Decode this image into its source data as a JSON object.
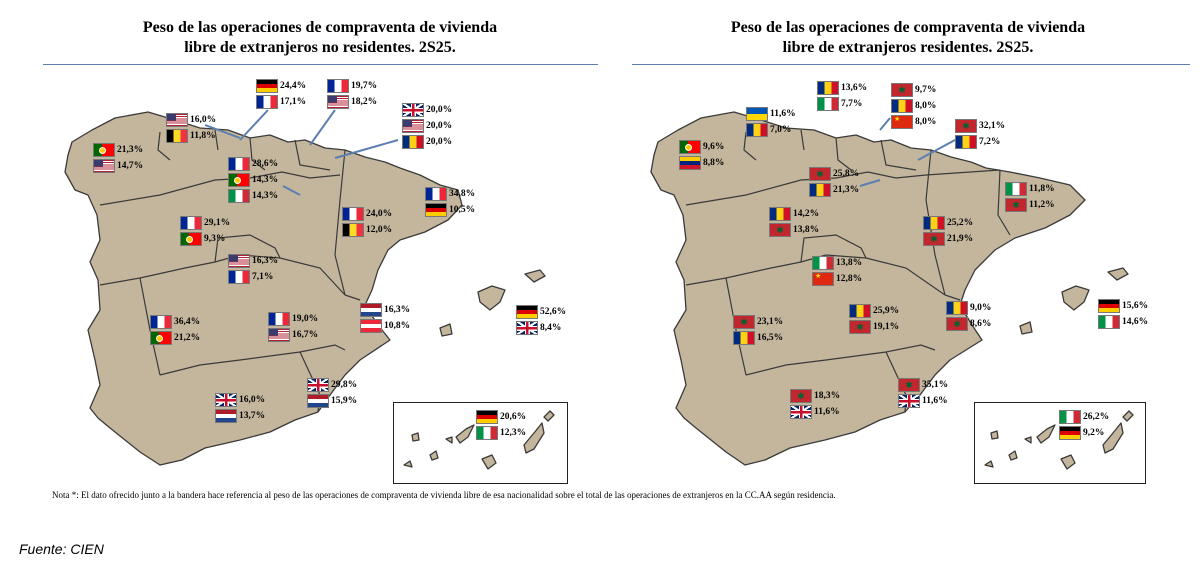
{
  "left": {
    "title_line1": "Peso de las operaciones de compraventa de vivienda",
    "title_line2": "libre de extranjeros no residentes. 2S25.",
    "regions": [
      {
        "region": "Galicia",
        "flags": [
          "pt",
          "us"
        ],
        "values": [
          "21,3%",
          "14,7%"
        ]
      },
      {
        "region": "Asturias",
        "flags": [
          "us",
          "be"
        ],
        "values": [
          "16,0%",
          "11,8%"
        ]
      },
      {
        "region": "Cantabria",
        "flags": [
          "de",
          "fr"
        ],
        "values": [
          "24,4%",
          "17,1%"
        ]
      },
      {
        "region": "País Vasco",
        "flags": [
          "fr",
          "us"
        ],
        "values": [
          "19,7%",
          "18,2%"
        ]
      },
      {
        "region": "Navarra",
        "flags": [
          "gb",
          "us",
          "ro"
        ],
        "values": [
          "20,0%",
          "20,0%",
          "20,0%"
        ]
      },
      {
        "region": "La Rioja",
        "flags": [
          "fr",
          "pt",
          "it"
        ],
        "values": [
          "28,6%",
          "14,3%",
          "14,3%"
        ]
      },
      {
        "region": "Cataluña",
        "flags": [
          "fr",
          "de"
        ],
        "values": [
          "34,8%",
          "10,5%"
        ]
      },
      {
        "region": "Aragón",
        "flags": [
          "fr",
          "be"
        ],
        "values": [
          "24,0%",
          "12,0%"
        ]
      },
      {
        "region": "Castilla y León",
        "flags": [
          "fr",
          "pt"
        ],
        "values": [
          "29,1%",
          "9,3%"
        ]
      },
      {
        "region": "Madrid",
        "flags": [
          "us",
          "fr"
        ],
        "values": [
          "16,3%",
          "7,1%"
        ]
      },
      {
        "region": "Extremadura",
        "flags": [
          "fr",
          "pt"
        ],
        "values": [
          "36,4%",
          "21,2%"
        ]
      },
      {
        "region": "Castilla-La Mancha",
        "flags": [
          "fr",
          "us"
        ],
        "values": [
          "19,0%",
          "16,7%"
        ]
      },
      {
        "region": "C. Valenciana",
        "flags": [
          "nl",
          "at"
        ],
        "values": [
          "16,3%",
          "10,8%"
        ]
      },
      {
        "region": "Baleares",
        "flags": [
          "de",
          "gb"
        ],
        "values": [
          "52,6%",
          "8,4%"
        ]
      },
      {
        "region": "Murcia",
        "flags": [
          "gb",
          "nl"
        ],
        "values": [
          "29,8%",
          "15,9%"
        ]
      },
      {
        "region": "Andalucía",
        "flags": [
          "gb",
          "nl"
        ],
        "values": [
          "16,0%",
          "13,7%"
        ]
      },
      {
        "region": "Canarias",
        "flags": [
          "de",
          "it"
        ],
        "values": [
          "20,6%",
          "12,3%"
        ]
      }
    ]
  },
  "right": {
    "title_line1": "Peso de las operaciones de compraventa de vivienda",
    "title_line2": "libre de extranjeros residentes. 2S25.",
    "regions": [
      {
        "region": "Galicia",
        "flags": [
          "pt",
          "ve"
        ],
        "values": [
          "9,6%",
          "8,8%"
        ]
      },
      {
        "region": "Asturias",
        "flags": [
          "ua",
          "ro"
        ],
        "values": [
          "11,6%",
          "7,0%"
        ]
      },
      {
        "region": "Cantabria",
        "flags": [
          "ro",
          "it"
        ],
        "values": [
          "13,6%",
          "7,7%"
        ]
      },
      {
        "region": "País Vasco",
        "flags": [
          "ma",
          "ro",
          "cn"
        ],
        "values": [
          "9,7%",
          "8,0%",
          "8,0%"
        ]
      },
      {
        "region": "Navarra",
        "flags": [
          "ma",
          "ro"
        ],
        "values": [
          "32,1%",
          "7,2%"
        ]
      },
      {
        "region": "La Rioja",
        "flags": [
          "ma",
          "ro"
        ],
        "values": [
          "25,8%",
          "21,3%"
        ]
      },
      {
        "region": "Cataluña",
        "flags": [
          "it",
          "ma"
        ],
        "values": [
          "11,8%",
          "11,2%"
        ]
      },
      {
        "region": "Castilla y León",
        "flags": [
          "ro",
          "ma"
        ],
        "values": [
          "14,2%",
          "13,8%"
        ]
      },
      {
        "region": "Aragón",
        "flags": [
          "ro",
          "ma"
        ],
        "values": [
          "25,2%",
          "21,9%"
        ]
      },
      {
        "region": "Madrid",
        "flags": [
          "it",
          "cn"
        ],
        "values": [
          "13,8%",
          "12,8%"
        ]
      },
      {
        "region": "Extremadura",
        "flags": [
          "ma",
          "ro"
        ],
        "values": [
          "23,1%",
          "16,5%"
        ]
      },
      {
        "region": "Castilla-La Mancha",
        "flags": [
          "ro",
          "ma"
        ],
        "values": [
          "25,9%",
          "19,1%"
        ]
      },
      {
        "region": "C. Valenciana",
        "flags": [
          "ro",
          "ma"
        ],
        "values": [
          "9,0%",
          "8,6%"
        ]
      },
      {
        "region": "Baleares",
        "flags": [
          "de",
          "it"
        ],
        "values": [
          "15,6%",
          "14,6%"
        ]
      },
      {
        "region": "Murcia",
        "flags": [
          "ma",
          "gb"
        ],
        "values": [
          "35,1%",
          "11,6%"
        ]
      },
      {
        "region": "Andalucía",
        "flags": [
          "ma",
          "gb"
        ],
        "values": [
          "18,3%",
          "11,6%"
        ]
      },
      {
        "region": "Canarias",
        "flags": [
          "it",
          "de"
        ],
        "values": [
          "26,2%",
          "9,2%"
        ]
      }
    ]
  },
  "flag_colors": {
    "de": "#000000/#dd0000/#ffce00",
    "fr": "#002395/#ffffff/#ed2939",
    "it": "#009246/#ffffff/#ce2b37",
    "pt": "#006600/#ff0000",
    "us": "#b22234/#3c3b6e",
    "gb": "#012169/#c8102e",
    "be": "#000000/#fdda24/#ef3340",
    "ro": "#002b7f/#fcd116/#ce1126",
    "nl": "#ae1c28/#ffffff/#21468b",
    "ma": "#c1272d/#006233",
    "ua": "#0057b7/#ffd700",
    "ve": "#ffcc00/#00247d/#cf142b",
    "cn": "#de2910/#ffde00",
    "at": "#ed2939/#ffffff"
  },
  "map_fill_color": "#c4b69c",
  "note": "Nota *: El dato ofrecido junto a la bandera hace referencia al peso de las operaciones de compraventa de vivienda libre de esa nacionalidad sobre el total de las operaciones de extranjeros en la CC.AA según residencia.",
  "source": "Fuente: CIEN"
}
